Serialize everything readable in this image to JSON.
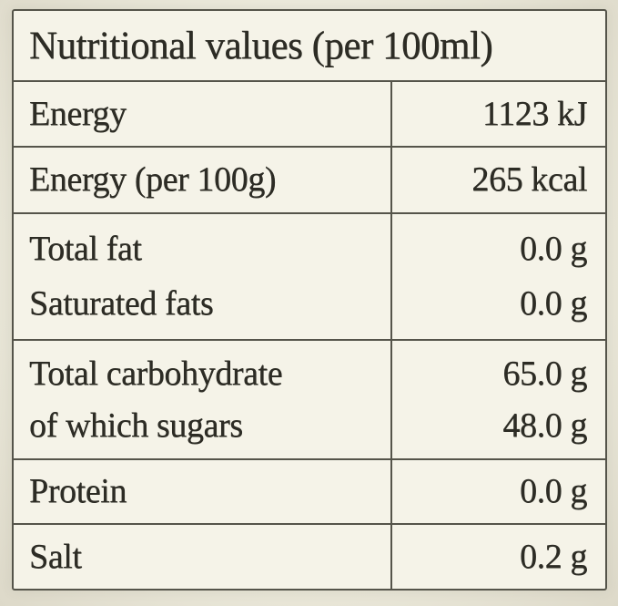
{
  "nutrition": {
    "title": "Nutritional values (per 100ml)",
    "sections": [
      {
        "lines": [
          {
            "label": "Energy",
            "value": "1123 kJ"
          }
        ]
      },
      {
        "lines": [
          {
            "label": "Energy (per 100g)",
            "value": "265 kcal"
          }
        ]
      },
      {
        "lines": [
          {
            "label": "Total fat",
            "value": "0.0 g"
          },
          {
            "label": "Saturated fats",
            "value": "0.0 g"
          }
        ]
      },
      {
        "lines": [
          {
            "label": "Total carbohydrate",
            "value": "65.0 g"
          },
          {
            "label": "of which sugars",
            "value": "48.0 g"
          }
        ]
      },
      {
        "lines": [
          {
            "label": "Protein",
            "value": "0.0 g"
          }
        ]
      },
      {
        "lines": [
          {
            "label": "Salt",
            "value": "0.2 g"
          }
        ]
      }
    ]
  },
  "colors": {
    "background": "#e9e6d8",
    "cell": "#f5f3e8",
    "line": "#55544a",
    "text": "#2d2c25"
  }
}
